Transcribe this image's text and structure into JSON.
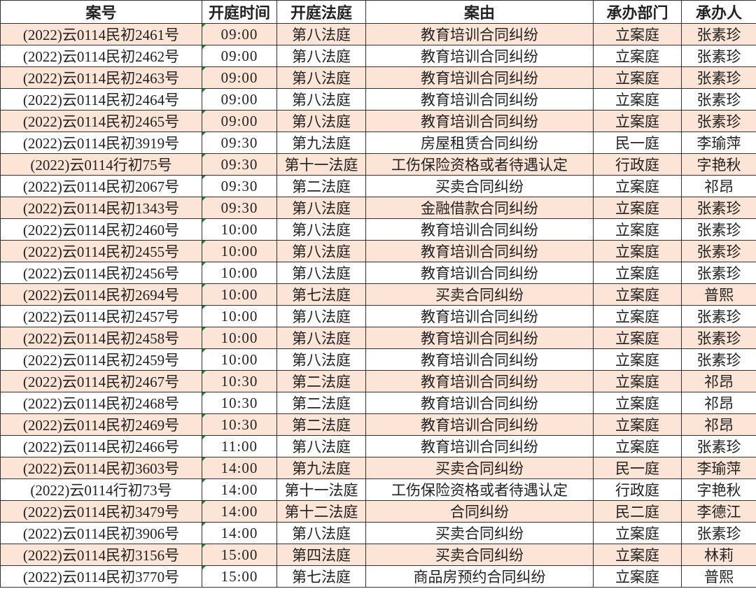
{
  "colors": {
    "row_alt_bg": "#fce4d6",
    "border": "#333333"
  },
  "table": {
    "headers": [
      "案号",
      "开庭时间",
      "开庭法庭",
      "案由",
      "承办部门",
      "承办人"
    ],
    "rows": [
      [
        "(2022)云0114民初2461号",
        "09:00",
        "第八法庭",
        "教育培训合同纠纷",
        "立案庭",
        "张素珍"
      ],
      [
        "(2022)云0114民初2462号",
        "09:00",
        "第八法庭",
        "教育培训合同纠纷",
        "立案庭",
        "张素珍"
      ],
      [
        "(2022)云0114民初2463号",
        "09:00",
        "第八法庭",
        "教育培训合同纠纷",
        "立案庭",
        "张素珍"
      ],
      [
        "(2022)云0114民初2464号",
        "09:00",
        "第八法庭",
        "教育培训合同纠纷",
        "立案庭",
        "张素珍"
      ],
      [
        "(2022)云0114民初2465号",
        "09:00",
        "第八法庭",
        "教育培训合同纠纷",
        "立案庭",
        "张素珍"
      ],
      [
        "(2022)云0114民初3919号",
        "09:30",
        "第九法庭",
        "房屋租赁合同纠纷",
        "民一庭",
        "李瑜萍"
      ],
      [
        "(2022)云0114行初75号",
        "09:30",
        "第十一法庭",
        "工伤保险资格或者待遇认定",
        "行政庭",
        "字艳秋"
      ],
      [
        "(2022)云0114民初2067号",
        "09:30",
        "第二法庭",
        "买卖合同纠纷",
        "立案庭",
        "祁昂"
      ],
      [
        "(2022)云0114民初1343号",
        "09:30",
        "第八法庭",
        "金融借款合同纠纷",
        "立案庭",
        "张素珍"
      ],
      [
        "(2022)云0114民初2460号",
        "10:00",
        "第八法庭",
        "教育培训合同纠纷",
        "立案庭",
        "张素珍"
      ],
      [
        "(2022)云0114民初2455号",
        "10:00",
        "第八法庭",
        "教育培训合同纠纷",
        "立案庭",
        "张素珍"
      ],
      [
        "(2022)云0114民初2456号",
        "10:00",
        "第八法庭",
        "教育培训合同纠纷",
        "立案庭",
        "张素珍"
      ],
      [
        "(2022)云0114民初2694号",
        "10:00",
        "第七法庭",
        "买卖合同纠纷",
        "立案庭",
        "普熙"
      ],
      [
        "(2022)云0114民初2457号",
        "10:00",
        "第八法庭",
        "教育培训合同纠纷",
        "立案庭",
        "张素珍"
      ],
      [
        "(2022)云0114民初2458号",
        "10:00",
        "第八法庭",
        "教育培训合同纠纷",
        "立案庭",
        "张素珍"
      ],
      [
        "(2022)云0114民初2459号",
        "10:00",
        "第八法庭",
        "教育培训合同纠纷",
        "立案庭",
        "张素珍"
      ],
      [
        "(2022)云0114民初2467号",
        "10:30",
        "第二法庭",
        "教育培训合同纠纷",
        "立案庭",
        "祁昂"
      ],
      [
        "(2022)云0114民初2468号",
        "10:30",
        "第二法庭",
        "教育培训合同纠纷",
        "立案庭",
        "祁昂"
      ],
      [
        "(2022)云0114民初2469号",
        "10:30",
        "第二法庭",
        "教育培训合同纠纷",
        "立案庭",
        "祁昂"
      ],
      [
        "(2022)云0114民初2466号",
        "11:00",
        "第八法庭",
        "教育培训合同纠纷",
        "立案庭",
        "张素珍"
      ],
      [
        "(2022)云0114民初3603号",
        "14:00",
        "第九法庭",
        "买卖合同纠纷",
        "民一庭",
        "李瑜萍"
      ],
      [
        "(2022)云0114行初73号",
        "14:00",
        "第十一法庭",
        "工伤保险资格或者待遇认定",
        "行政庭",
        "字艳秋"
      ],
      [
        "(2022)云0114民初3479号",
        "14:00",
        "第十二法庭",
        "合同纠纷",
        "民二庭",
        "李德江"
      ],
      [
        "(2022)云0114民初3906号",
        "14:00",
        "第八法庭",
        "买卖合同纠纷",
        "立案庭",
        "张素珍"
      ],
      [
        "(2022)云0114民初3156号",
        "15:00",
        "第四法庭",
        "买卖合同纠纷",
        "立案庭",
        "林莉"
      ],
      [
        "(2022)云0114民初3770号",
        "15:00",
        "第七法庭",
        "商品房预约合同纠纷",
        "立案庭",
        "普熙"
      ]
    ]
  }
}
